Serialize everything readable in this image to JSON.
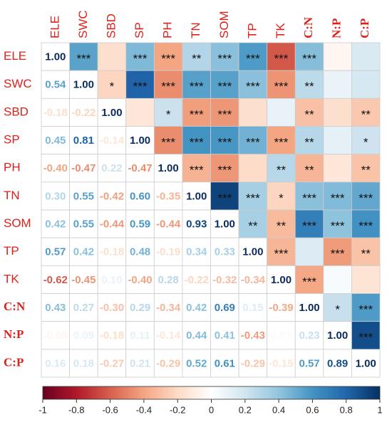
{
  "chart_data": {
    "type": "corrplot",
    "variables": [
      "ELE",
      "SWC",
      "SBD",
      "SP",
      "PH",
      "TN",
      "SOM",
      "TP",
      "TK",
      "C:N",
      "N:P",
      "C:P"
    ],
    "values": [
      [
        1.0
      ],
      [
        0.54,
        1.0
      ],
      [
        -0.18,
        -0.22,
        1.0
      ],
      [
        0.45,
        0.81,
        -0.14,
        1.0
      ],
      [
        -0.4,
        -0.47,
        0.22,
        -0.47,
        1.0
      ],
      [
        0.3,
        0.55,
        -0.42,
        0.6,
        -0.35,
        1.0
      ],
      [
        0.42,
        0.55,
        -0.44,
        0.59,
        -0.44,
        0.93,
        1.0
      ],
      [
        0.57,
        0.42,
        -0.18,
        0.48,
        -0.19,
        0.34,
        0.33,
        1.0
      ],
      [
        -0.62,
        -0.45,
        0.1,
        -0.4,
        0.28,
        -0.22,
        -0.32,
        -0.34,
        1.0
      ],
      [
        0.43,
        0.27,
        -0.3,
        0.29,
        -0.34,
        0.42,
        0.69,
        0.15,
        -0.39,
        1.0
      ],
      [
        -0.05,
        0.09,
        -0.18,
        0.11,
        -0.14,
        0.44,
        0.41,
        -0.43,
        0.03,
        0.23,
        1.0
      ],
      [
        0.16,
        0.18,
        -0.27,
        0.21,
        -0.29,
        0.52,
        0.61,
        -0.29,
        -0.15,
        0.57,
        0.89,
        1.0
      ]
    ],
    "value_labels": [
      [
        "1.00"
      ],
      [
        "0.54",
        "1.00"
      ],
      [
        "-0.18",
        "-0.22",
        "1.00"
      ],
      [
        "0.45",
        "0.81",
        "-0.14",
        "1.00"
      ],
      [
        "-0.40",
        "-0.47",
        "0.22",
        "-0.47",
        "1.00"
      ],
      [
        "0.30",
        "0.55",
        "-0.42",
        "0.60",
        "-0.35",
        "1.00"
      ],
      [
        "0.42",
        "0.55",
        "-0.44",
        "0.59",
        "-0.44",
        "0.93",
        "1.00"
      ],
      [
        "0.57",
        "0.42",
        "-0.18",
        "0.48",
        "-0.19",
        "0.34",
        "0.33",
        "1.00"
      ],
      [
        "-0.62",
        "-0.45",
        "0.10",
        "-0.40",
        "0.28",
        "-0.22",
        "-0.32",
        "-0.34",
        "1.00"
      ],
      [
        "0.43",
        "0.27",
        "-0.30",
        "0.29",
        "-0.34",
        "0.42",
        "0.69",
        "0.15",
        "-0.39",
        "1.00"
      ],
      [
        "-0.05",
        "0.09",
        "-0.18",
        "0.11",
        "-0.14",
        "0.44",
        "0.41",
        "-0.43",
        "0.03",
        "0.23",
        "1.00"
      ],
      [
        "0.16",
        "0.18",
        "-0.27",
        "0.21",
        "-0.29",
        "0.52",
        "0.61",
        "-0.29",
        "-0.15",
        "0.57",
        "0.89",
        "1.00"
      ]
    ],
    "significance": [
      [
        "***",
        null,
        "***",
        "***",
        "**",
        "***",
        "***",
        "***",
        "***",
        null,
        null
      ],
      [
        "*",
        "***",
        "***",
        "***",
        "***",
        "***",
        "***",
        "**",
        null,
        null
      ],
      [
        null,
        "*",
        "***",
        "***",
        null,
        null,
        "**",
        null,
        "**"
      ],
      [
        "***",
        "***",
        "***",
        "***",
        "***",
        "**",
        null,
        "*"
      ],
      [
        "***",
        "***",
        null,
        "**",
        "**",
        null,
        "**"
      ],
      [
        "***",
        "***",
        "*",
        "***",
        "***",
        "***"
      ],
      [
        "**",
        "**",
        "***",
        "***",
        "***"
      ],
      [
        "***",
        null,
        "***",
        "**"
      ],
      [
        "***",
        null,
        null
      ],
      [
        "*",
        "***"
      ],
      [
        "***"
      ],
      []
    ],
    "colors": [
      "#67001F",
      "#B2182B",
      "#D6604D",
      "#F4A582",
      "#FDDBC7",
      "#FFFFFF",
      "#D1E5F0",
      "#92C5DE",
      "#4393C3",
      "#2166AC",
      "#053061"
    ],
    "clim": [
      -1,
      1
    ],
    "cticks": [
      -1,
      -0.8,
      -0.6,
      -0.4,
      -0.2,
      0,
      0.2,
      0.4,
      0.6,
      0.8,
      1
    ]
  }
}
